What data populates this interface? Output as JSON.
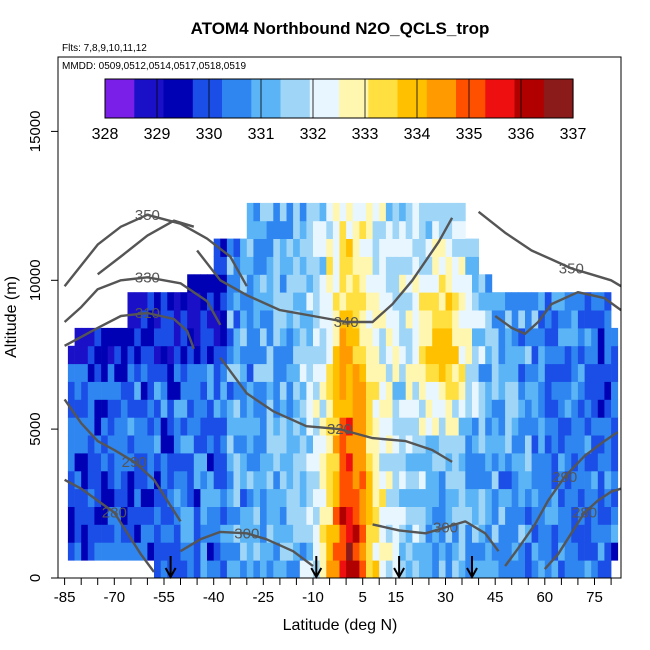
{
  "chart_data": {
    "type": "heatmap",
    "title": "ATOM4 Northbound N2O_QCLS_trop",
    "flights_note": "Flts: 7,8,9,10,11,12",
    "dates_note": "MMDD: 0509,0512,0514,0517,0518,0519",
    "xlabel": "Latitude (deg N)",
    "ylabel": "Altitude (m)",
    "xlim": [
      -87,
      83
    ],
    "ylim": [
      0,
      17500
    ],
    "x_ticks": [
      -85,
      -70,
      -55,
      -40,
      -25,
      -10,
      5,
      15,
      30,
      45,
      60,
      75
    ],
    "y_ticks": [
      0,
      5000,
      10000,
      15000
    ],
    "colorbar": {
      "ticks": [
        328,
        329,
        330,
        331,
        332,
        333,
        334,
        335,
        336,
        337
      ],
      "colors": [
        "#7a1fe8",
        "#1a10c8",
        "#0000b4",
        "#1a4ee6",
        "#2f86f0",
        "#5ab4f5",
        "#9fd6f8",
        "#e8f6ff",
        "#fff6b0",
        "#ffe040",
        "#ffc000",
        "#ff9a00",
        "#ff5000",
        "#ee1010",
        "#b00000",
        "#8b1a1a"
      ]
    },
    "contours": [
      {
        "label": "350",
        "points": [
          [
            -85,
            9800
          ],
          [
            -80,
            10500
          ],
          [
            -75,
            11200
          ],
          [
            -68,
            11800
          ],
          [
            -60,
            12200
          ],
          [
            -50,
            11900
          ],
          [
            -42,
            11400
          ],
          [
            -35,
            10800
          ],
          [
            -30,
            9800
          ]
        ]
      },
      {
        "label": "330",
        "points": [
          [
            -85,
            8600
          ],
          [
            -80,
            9100
          ],
          [
            -75,
            9700
          ],
          [
            -68,
            10000
          ],
          [
            -60,
            10100
          ],
          [
            -50,
            9900
          ],
          [
            -42,
            9300
          ],
          [
            -38,
            8500
          ]
        ]
      },
      {
        "label": "310",
        "points": [
          [
            -85,
            7800
          ],
          [
            -80,
            8100
          ],
          [
            -75,
            8400
          ],
          [
            -68,
            8800
          ],
          [
            -60,
            8900
          ],
          [
            -52,
            8700
          ],
          [
            -48,
            8300
          ],
          [
            -46,
            7700
          ]
        ]
      },
      {
        "label": "290",
        "points": [
          [
            -85,
            6000
          ],
          [
            -80,
            5200
          ],
          [
            -75,
            4600
          ],
          [
            -70,
            4300
          ],
          [
            -64,
            3900
          ],
          [
            -58,
            3300
          ],
          [
            -54,
            2600
          ],
          [
            -50,
            1900
          ]
        ]
      },
      {
        "label": "280",
        "points": [
          [
            -85,
            3300
          ],
          [
            -80,
            3000
          ],
          [
            -75,
            2600
          ],
          [
            -70,
            2200
          ],
          [
            -66,
            1500
          ],
          [
            -62,
            800
          ],
          [
            -58,
            200
          ]
        ]
      },
      {
        "label": "300",
        "points": [
          [
            -50,
            900
          ],
          [
            -44,
            1300
          ],
          [
            -38,
            1550
          ],
          [
            -30,
            1500
          ],
          [
            -24,
            1300
          ],
          [
            -16,
            900
          ],
          [
            -10,
            400
          ]
        ]
      },
      {
        "label": "340",
        "points": [
          [
            -45,
            11000
          ],
          [
            -38,
            10000
          ],
          [
            -30,
            9500
          ],
          [
            -20,
            9000
          ],
          [
            -10,
            8800
          ],
          [
            0,
            8600
          ],
          [
            8,
            8600
          ],
          [
            14,
            9200
          ],
          [
            20,
            10000
          ],
          [
            28,
            11300
          ],
          [
            32,
            12100
          ]
        ]
      },
      {
        "label": "320",
        "points": [
          [
            -38,
            7400
          ],
          [
            -30,
            6200
          ],
          [
            -22,
            5600
          ],
          [
            -12,
            5100
          ],
          [
            -2,
            5000
          ],
          [
            8,
            4700
          ],
          [
            18,
            4600
          ],
          [
            26,
            4300
          ],
          [
            32,
            3900
          ]
        ]
      },
      {
        "label": "300",
        "points": [
          [
            8,
            1800
          ],
          [
            16,
            1600
          ],
          [
            24,
            1500
          ],
          [
            30,
            1700
          ],
          [
            36,
            1900
          ],
          [
            42,
            1500
          ],
          [
            46,
            900
          ]
        ]
      },
      {
        "label": "290",
        "points": [
          [
            48,
            400
          ],
          [
            52,
            1000
          ],
          [
            57,
            1800
          ],
          [
            61,
            2600
          ],
          [
            66,
            3400
          ],
          [
            72,
            4100
          ],
          [
            78,
            4600
          ],
          [
            82,
            4900
          ]
        ]
      },
      {
        "label": "280",
        "points": [
          [
            60,
            300
          ],
          [
            64,
            800
          ],
          [
            68,
            1500
          ],
          [
            72,
            2200
          ],
          [
            76,
            2600
          ],
          [
            80,
            2900
          ],
          [
            83,
            3000
          ]
        ]
      },
      {
        "label": "350",
        "points": [
          [
            40,
            12300
          ],
          [
            48,
            11600
          ],
          [
            56,
            11000
          ],
          [
            62,
            10700
          ],
          [
            68,
            10400
          ],
          [
            74,
            10200
          ],
          [
            80,
            10000
          ],
          [
            83,
            9800
          ]
        ]
      },
      {
        "label": "",
        "points": [
          [
            -75,
            10200
          ],
          [
            -68,
            10800
          ],
          [
            -60,
            11500
          ],
          [
            -52,
            12000
          ],
          [
            -46,
            11800
          ]
        ]
      },
      {
        "label": "",
        "points": [
          [
            45,
            8800
          ],
          [
            50,
            8400
          ],
          [
            54,
            8200
          ],
          [
            58,
            8600
          ],
          [
            62,
            9200
          ],
          [
            70,
            9600
          ],
          [
            78,
            9400
          ],
          [
            83,
            9000
          ]
        ]
      }
    ],
    "arrows_latitude": [
      -53,
      -9,
      16,
      38
    ]
  }
}
